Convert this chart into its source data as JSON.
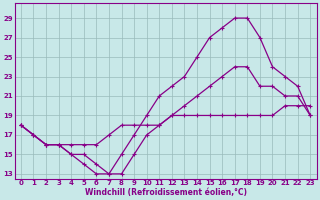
{
  "bg_color": "#c8e8e8",
  "line_color": "#880088",
  "grid_color": "#99bbbb",
  "xlabel": "Windchill (Refroidissement éolien,°C)",
  "xlim": [
    -0.5,
    23.5
  ],
  "ylim": [
    12.5,
    30.5
  ],
  "yticks": [
    13,
    15,
    17,
    19,
    21,
    23,
    25,
    27,
    29
  ],
  "xticks": [
    0,
    1,
    2,
    3,
    4,
    5,
    6,
    7,
    8,
    9,
    10,
    11,
    12,
    13,
    14,
    15,
    16,
    17,
    18,
    19,
    20,
    21,
    22,
    23
  ],
  "curves": [
    {
      "x": [
        0,
        1,
        2,
        3,
        4,
        5,
        6,
        7,
        8,
        9,
        10,
        11,
        12,
        13,
        14,
        15,
        16,
        17,
        18,
        19,
        20,
        21,
        22,
        23
      ],
      "y": [
        18,
        17,
        16,
        16,
        15,
        14,
        13,
        13,
        15,
        17,
        19,
        21,
        22,
        23,
        25,
        27,
        28,
        29,
        29,
        27,
        24,
        23,
        22,
        19
      ]
    },
    {
      "x": [
        0,
        1,
        2,
        3,
        4,
        5,
        6,
        7,
        8,
        9,
        10,
        11,
        12,
        13,
        14,
        15,
        16,
        17,
        18,
        19,
        20,
        21,
        22,
        23
      ],
      "y": [
        18,
        17,
        16,
        16,
        15,
        15,
        14,
        13,
        13,
        15,
        17,
        18,
        19,
        20,
        21,
        22,
        23,
        24,
        24,
        22,
        22,
        21,
        21,
        19
      ]
    },
    {
      "x": [
        0,
        1,
        2,
        3,
        4,
        5,
        6,
        7,
        8,
        9,
        10,
        11,
        12,
        13,
        14,
        15,
        16,
        17,
        18,
        19,
        20,
        21,
        22,
        23
      ],
      "y": [
        18,
        17,
        16,
        16,
        16,
        16,
        16,
        17,
        18,
        18,
        18,
        18,
        19,
        19,
        19,
        19,
        19,
        19,
        19,
        19,
        19,
        20,
        20,
        20
      ]
    }
  ]
}
